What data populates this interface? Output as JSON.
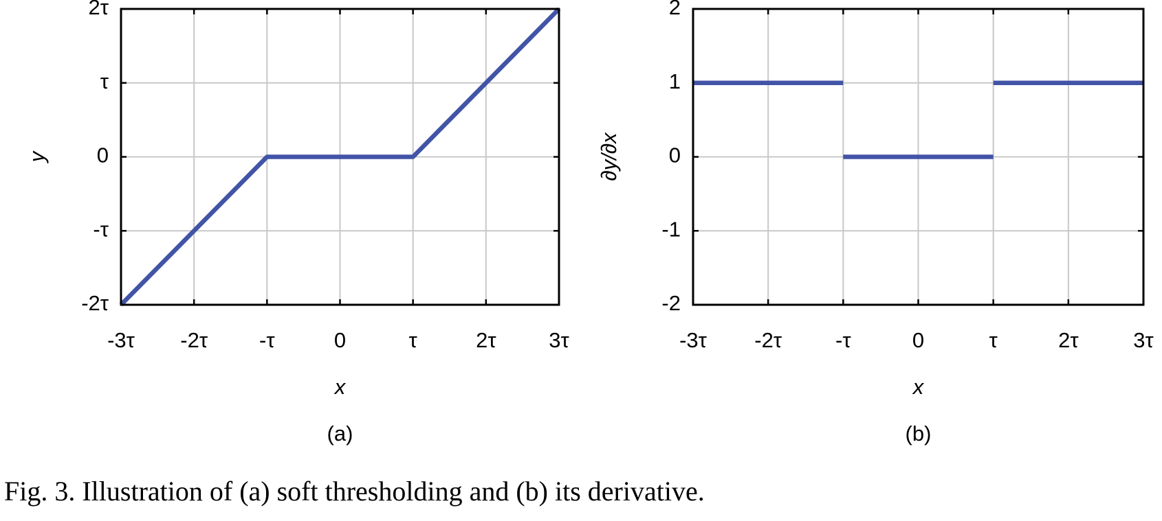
{
  "chart_data": [
    {
      "type": "line",
      "caption": "(a)",
      "xlabel": "x",
      "ylabel": "y",
      "x": [
        -3,
        -1,
        1,
        3
      ],
      "series": [
        {
          "color": "#4154a6",
          "values": [
            -2,
            0,
            0,
            2
          ]
        }
      ],
      "xlim": [
        -3,
        3
      ],
      "ylim": [
        -2,
        2
      ],
      "xticks": [
        {
          "value": -3,
          "label": "-3τ"
        },
        {
          "value": -2,
          "label": "-2τ"
        },
        {
          "value": -1,
          "label": "-τ"
        },
        0,
        {
          "value": 1,
          "label": "τ"
        },
        {
          "value": 2,
          "label": "2τ"
        },
        {
          "value": 3,
          "label": "3τ"
        }
      ],
      "yticks": [
        {
          "value": -2,
          "label": "-2τ"
        },
        {
          "value": -1,
          "label": "-τ"
        },
        0,
        {
          "value": 1,
          "label": "τ"
        },
        {
          "value": 2,
          "label": "2τ"
        }
      ],
      "grid": true
    },
    {
      "type": "line",
      "caption": "(b)",
      "xlabel": "x",
      "ylabel": "∂y/∂x",
      "x": [
        -3,
        -1,
        null,
        -1,
        1,
        null,
        1,
        3
      ],
      "series": [
        {
          "color": "#4154a6",
          "values": [
            1,
            1,
            null,
            0,
            0,
            null,
            1,
            1
          ]
        }
      ],
      "xlim": [
        -3,
        3
      ],
      "ylim": [
        -2,
        2
      ],
      "xticks": [
        {
          "value": -3,
          "label": "-3τ"
        },
        {
          "value": -2,
          "label": "-2τ"
        },
        {
          "value": -1,
          "label": "-τ"
        },
        0,
        {
          "value": 1,
          "label": "τ"
        },
        {
          "value": 2,
          "label": "2τ"
        },
        {
          "value": 3,
          "label": "3τ"
        }
      ],
      "yticks": [
        -2,
        -1,
        0,
        1,
        2
      ],
      "grid": true
    }
  ],
  "figure_caption": "Fig. 3. Illustration of (a) soft thresholding and (b) its derivative."
}
